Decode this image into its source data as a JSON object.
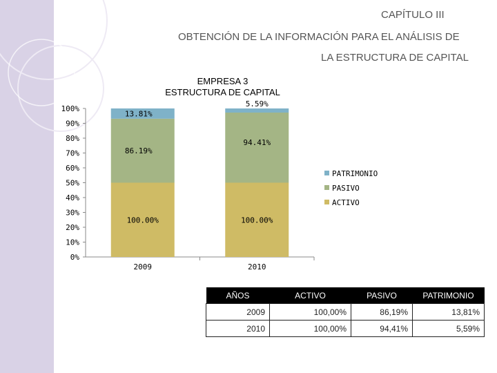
{
  "header": {
    "chapter": "CAPÍTULO III",
    "subtitle_line1": "OBTENCIÓN DE LA INFORMACIÓN PARA EL ANÁLISIS DE",
    "subtitle_line2": "LA ESTRUCTURA DE CAPITAL"
  },
  "colors": {
    "sidebar": "#d9d2e6",
    "patrimonio": "#7fb2c8",
    "pasivo": "#a4b585",
    "activo": "#cfbb65"
  },
  "chart_data": {
    "type": "bar",
    "stacking": "stacked-100 (ACTIVO drawn as its own 0-50% segment)",
    "title_line1": "EMPRESA 3",
    "title_line2": "ESTRUCTURA DE CAPITAL",
    "categories": [
      "2009",
      "2010"
    ],
    "ylim": [
      0,
      100
    ],
    "yticks": [
      "0%",
      "10%",
      "20%",
      "30%",
      "40%",
      "50%",
      "60%",
      "70%",
      "80%",
      "90%",
      "100%"
    ],
    "legend_position": "right",
    "series": [
      {
        "name": "ACTIVO",
        "values": [
          100.0,
          100.0
        ],
        "labels": [
          "100.00%",
          "100.00%"
        ]
      },
      {
        "name": "PASIVO",
        "values": [
          86.19,
          94.41
        ],
        "labels": [
          "86.19%",
          "94.41%"
        ]
      },
      {
        "name": "PATRIMONIO",
        "values": [
          13.81,
          5.59
        ],
        "labels": [
          "13.81%",
          "5.59%"
        ]
      }
    ]
  },
  "table": {
    "headers": [
      "AÑOS",
      "ACTIVO",
      "PASIVO",
      "PATRIMONIO"
    ],
    "rows": [
      [
        "2009",
        "100,00%",
        "86,19%",
        "13,81%"
      ],
      [
        "2010",
        "100,00%",
        "94,41%",
        "5,59%"
      ]
    ]
  }
}
